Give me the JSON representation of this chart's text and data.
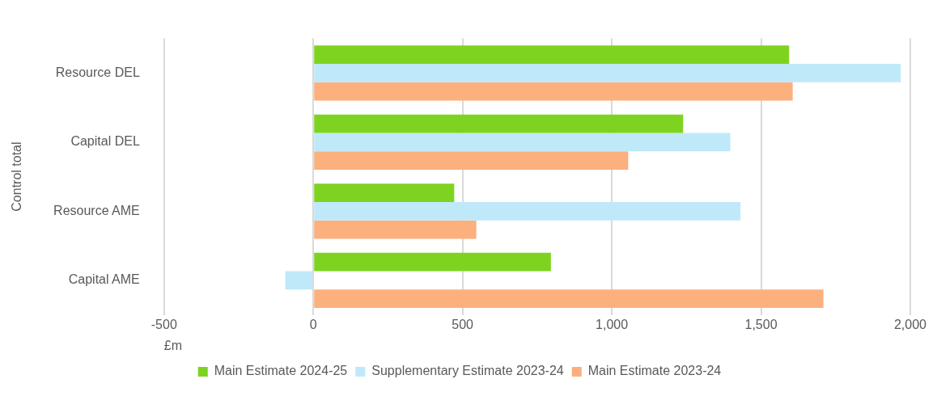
{
  "chart_data": {
    "type": "bar",
    "orientation": "horizontal",
    "ylabel": "Control total",
    "xlabel": "£m",
    "categories": [
      "Resource DEL",
      "Capital DEL",
      "Resource AME",
      "Capital AME"
    ],
    "series": [
      {
        "name": "Main Estimate 2024-25",
        "color": "#7ed321",
        "values": [
          1594,
          1239,
          472,
          796
        ]
      },
      {
        "name": "Supplementary Estimate 2023-24",
        "color": "#bfe9f9",
        "values": [
          1968,
          1397,
          1431,
          -94
        ]
      },
      {
        "name": "Main Estimate 2023-24",
        "color": "#fbb07e",
        "values": [
          1606,
          1055,
          546,
          1709
        ]
      }
    ],
    "xlim": [
      -500,
      2000
    ],
    "xticks": [
      -500,
      0,
      500,
      {
        "value": 1000,
        "label": "1,000"
      },
      {
        "value": 1500,
        "label": "1,500"
      },
      {
        "value": 2000,
        "label": "2,000"
      }
    ],
    "grid": "x",
    "legend": "bottom"
  }
}
